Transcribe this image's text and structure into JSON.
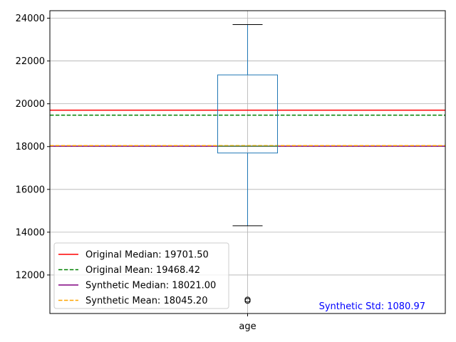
{
  "chart_data": {
    "type": "box",
    "categories": [
      "age"
    ],
    "box": {
      "whisker_low": 14300,
      "q1": 17700,
      "median": 18021.0,
      "q3": 21350,
      "whisker_high": 23700,
      "outliers": [
        10850,
        10790
      ]
    },
    "ylim": [
      10200,
      24350
    ],
    "yticks": [
      12000,
      14000,
      16000,
      18000,
      20000,
      22000,
      24000
    ],
    "ytick_labels": [
      "12000",
      "14000",
      "16000",
      "18000",
      "20000",
      "22000",
      "24000"
    ],
    "grid": true,
    "box_color": "#1f77b4",
    "reference_lines": [
      {
        "label": "Original Median: 19701.50",
        "value": 19701.5,
        "color": "#ff0000",
        "style": "solid"
      },
      {
        "label": "Original Mean: 19468.42",
        "value": 19468.42,
        "color": "#008000",
        "style": "dashed"
      },
      {
        "label": "Synthetic Median: 18021.00",
        "value": 18021.0,
        "color": "#800080",
        "style": "solid"
      },
      {
        "label": "Synthetic Mean: 18045.20",
        "value": 18045.2,
        "color": "#ffa500",
        "style": "dashed"
      }
    ],
    "legend_position": "lower-left",
    "annotation": {
      "text": "Synthetic Std: 1080.97",
      "color": "#0000ff"
    }
  }
}
